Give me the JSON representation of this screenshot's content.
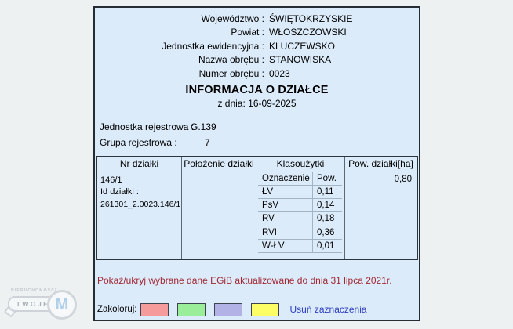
{
  "header": {
    "rows": [
      {
        "label": "Województwo :",
        "value": "ŚWIĘTOKRZYSKIE"
      },
      {
        "label": "Powiat :",
        "value": "WŁOSZCZOWSKI"
      },
      {
        "label": "Jednostka ewidencyjna :",
        "value": "KLUCZEWSKO"
      },
      {
        "label": "Nazwa obrębu :",
        "value": "STANOWISKA"
      },
      {
        "label": "Numer obrębu :",
        "value": "0023"
      }
    ]
  },
  "title": "INFORMACJA O DZIAŁCE",
  "subtitle": "z dnia: 16-09-2025",
  "registry": {
    "rows": [
      {
        "label": "Jednostka rejestrowa :",
        "value": "G.139"
      },
      {
        "label": "Grupa rejestrowa :",
        "value": "7"
      }
    ]
  },
  "table": {
    "headers": [
      "Nr działki",
      "Położenie działki",
      "Klasoużytki",
      "Pow. działki[ha]"
    ],
    "parcel": {
      "number": "146/1",
      "id_label": "Id działki :",
      "id": "261301_2.0023.146/1"
    },
    "location": "",
    "area_ha": "0,80",
    "landuse": {
      "header": [
        "Oznaczenie",
        "Pow."
      ],
      "rows": [
        [
          "ŁV",
          "0,11"
        ],
        [
          "PsV",
          "0,14"
        ],
        [
          "RV",
          "0,18"
        ],
        [
          "RVI",
          "0,36"
        ],
        [
          "W-ŁV",
          "0,01"
        ]
      ]
    }
  },
  "footer": {
    "egib_toggle": "Pokaż/ukryj wybrane dane EGiB aktualizowane do dnia 31 lipca 2021r.",
    "colorize_label": "Zakoloruj:",
    "swatches": [
      "#f59b9b",
      "#9aee9a",
      "#b3b2e6",
      "#fdfd66"
    ],
    "clear_link": "Usuń zaznaczenia"
  },
  "watermark": {
    "top_text": "NIERUCHOMOŚCI",
    "key_text": "TWOJE",
    "badge_letter": "M"
  },
  "colors": {
    "accent_red": "#a22832",
    "link_blue": "#2e3fbe",
    "doc_bg": "#dcebfa",
    "page_bg": "#eef1f2"
  }
}
